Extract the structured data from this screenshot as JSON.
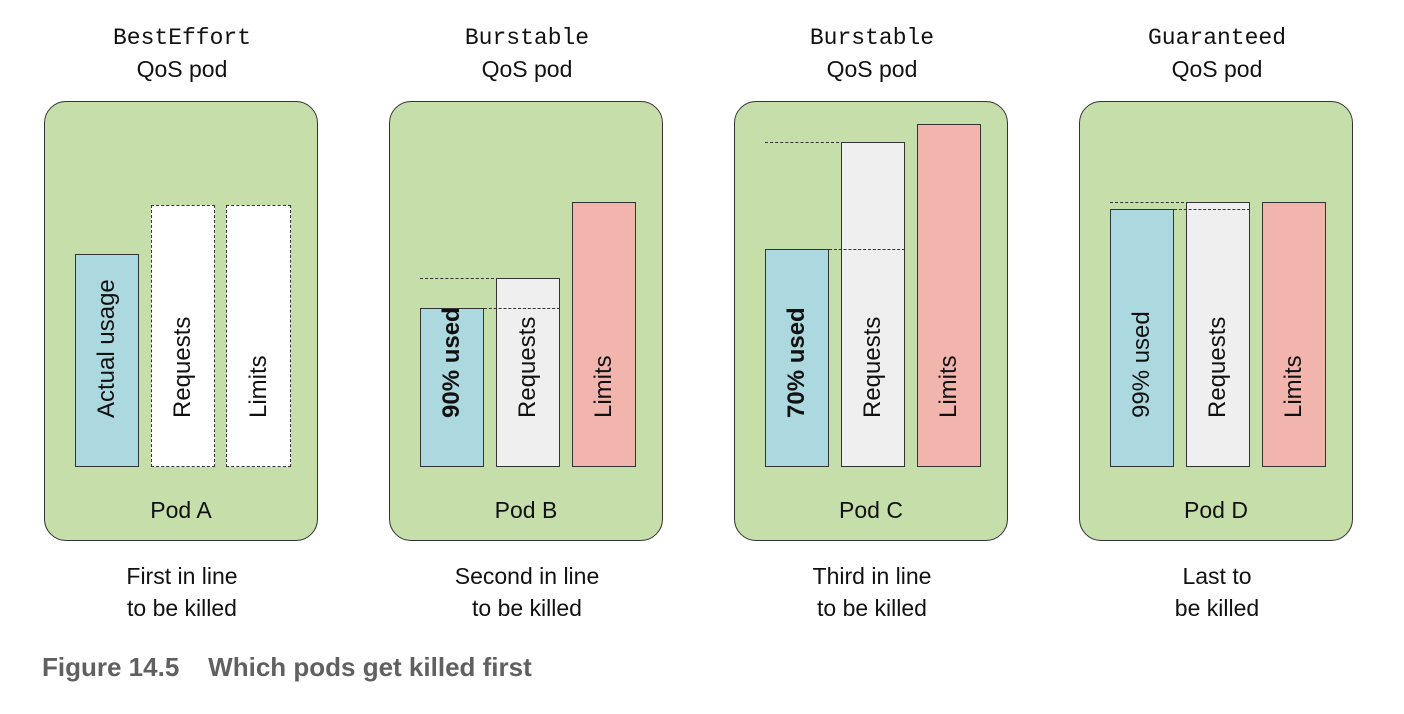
{
  "pods": [
    {
      "qos_class": "BestEffort",
      "qos_suffix": "QoS pod",
      "name": "Pod A",
      "fate_line1": "First in line",
      "fate_line2": "to be killed",
      "usage_label": "Actual usage",
      "requests_label": "Requests",
      "limits_label": "Limits"
    },
    {
      "qos_class": "Burstable",
      "qos_suffix": "QoS pod",
      "name": "Pod B",
      "fate_line1": "Second in line",
      "fate_line2": "to be killed",
      "usage_label": "90% used",
      "requests_label": "Requests",
      "limits_label": "Limits",
      "usage_percent_of_request": 90
    },
    {
      "qos_class": "Burstable",
      "qos_suffix": "QoS pod",
      "name": "Pod C",
      "fate_line1": "Third in line",
      "fate_line2": "to be killed",
      "usage_label": "70% used",
      "requests_label": "Requests",
      "limits_label": "Limits",
      "usage_percent_of_request": 70
    },
    {
      "qos_class": "Guaranteed",
      "qos_suffix": "QoS pod",
      "name": "Pod D",
      "fate_line1": "Last to",
      "fate_line2": "be killed",
      "usage_label": "99% used",
      "requests_label": "Requests",
      "limits_label": "Limits",
      "usage_percent_of_request": 99
    }
  ],
  "colors": {
    "pod_background": "#c6deaa",
    "usage": "#acd9e0",
    "requests": "#efefef",
    "limits": "#f2b5ae"
  },
  "caption": "Figure 14.5    Which pods get killed first"
}
